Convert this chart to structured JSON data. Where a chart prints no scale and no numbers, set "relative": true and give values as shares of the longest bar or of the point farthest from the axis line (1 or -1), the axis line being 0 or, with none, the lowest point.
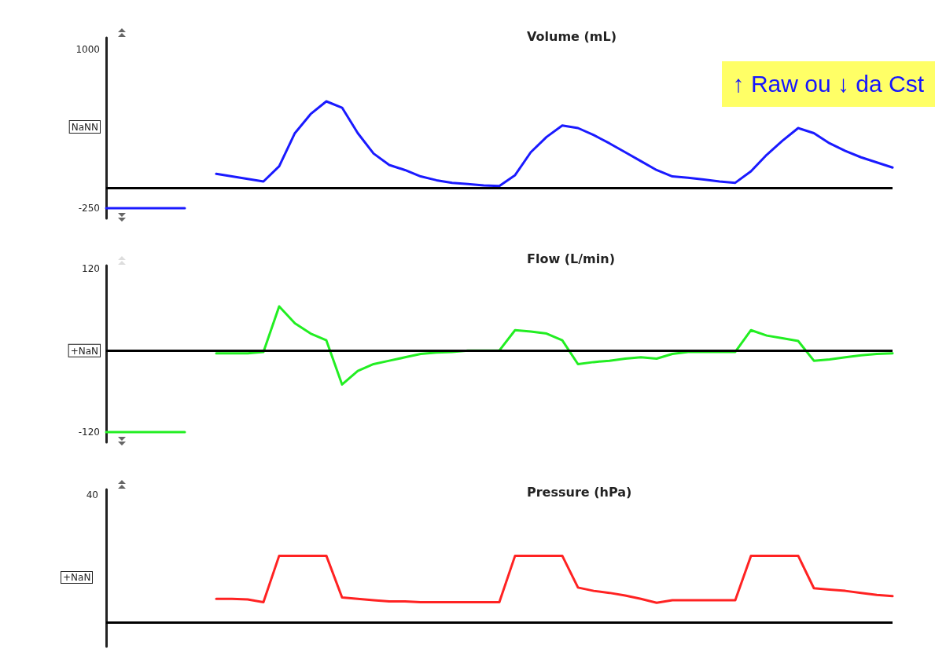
{
  "chart_data": [
    {
      "type": "line",
      "title": "Volume (mL)",
      "categories": [
        null,
        null,
        null,
        null,
        null,
        null,
        null,
        null,
        null,
        null,
        null,
        null,
        null,
        null,
        null,
        null,
        null,
        null,
        null,
        null,
        null,
        null,
        null,
        null,
        null,
        null,
        null,
        null,
        null,
        null,
        null,
        null,
        null,
        null,
        null,
        null,
        null,
        null,
        null,
        null,
        null,
        null,
        null,
        null,
        null,
        null,
        null,
        null,
        null,
        null,
        null
      ],
      "series": [
        {
          "color": "#1a1aff",
          "values": [
            -250,
            -250,
            -250,
            -250,
            -250,
            -250,
            null,
            null,
            null,
            null,
            null,
            null,
            null,
            null,
            null,
            null,
            null,
            null,
            null,
            null,
            null,
            null,
            null,
            null,
            null,
            null,
            null,
            null,
            null,
            null,
            null,
            null,
            null,
            null,
            null,
            null,
            null,
            null,
            null,
            null,
            null,
            null,
            null,
            null,
            null,
            null,
            null,
            null,
            null,
            null,
            null
          ]
        },
        {
          "color": "#1a1aff",
          "values": [
            null,
            null,
            null,
            null,
            null,
            null,
            null,
            20,
            0,
            -20,
            -40,
            80,
            340,
            490,
            590,
            540,
            340,
            180,
            90,
            50,
            0,
            -30,
            -50,
            -60,
            -70,
            -75,
            10,
            190,
            310,
            400,
            380,
            325,
            260,
            190,
            120,
            50,
            0,
            -10,
            -25,
            -40,
            -50,
            40,
            170,
            280,
            380,
            340,
            260,
            200,
            150,
            110,
            70
          ]
        }
      ],
      "ylim": [
        -330,
        1090
      ],
      "yticks": [
        1000,
        {
          "value": 390,
          "label": "NaNN"
        },
        -250
      ],
      "tick_labels": "y",
      "ref_lines": [
        {
          "axis": "y",
          "value": -90,
          "color": "#000000"
        }
      ],
      "annotations": [
        "↑ Raw ou ↓ da Cst"
      ]
    },
    {
      "type": "line",
      "title": "Flow (L/min)",
      "categories": [
        null,
        null,
        null,
        null,
        null,
        null,
        null,
        null,
        null,
        null,
        null,
        null,
        null,
        null,
        null,
        null,
        null,
        null,
        null,
        null,
        null,
        null,
        null,
        null,
        null,
        null,
        null,
        null,
        null,
        null,
        null,
        null,
        null,
        null,
        null,
        null,
        null,
        null,
        null,
        null,
        null,
        null,
        null,
        null,
        null,
        null,
        null,
        null,
        null,
        null,
        null
      ],
      "series": [
        {
          "color": "#22ee22",
          "values": [
            -120,
            -120,
            -120,
            -120,
            -120,
            -120,
            null,
            null,
            null,
            null,
            null,
            null,
            null,
            null,
            null,
            null,
            null,
            null,
            null,
            null,
            null,
            null,
            null,
            null,
            null,
            null,
            null,
            null,
            null,
            null,
            null,
            null,
            null,
            null,
            null,
            null,
            null,
            null,
            null,
            null,
            null,
            null,
            null,
            null,
            null,
            null,
            null,
            null,
            null,
            null,
            null
          ]
        },
        {
          "color": "#22ee22",
          "values": [
            null,
            null,
            null,
            null,
            null,
            null,
            null,
            -4,
            -4,
            -4,
            -2,
            65,
            40,
            25,
            15,
            -50,
            -30,
            -20,
            -15,
            -10,
            -5,
            -3,
            -2,
            0,
            0,
            0,
            30,
            28,
            25,
            15,
            -20,
            -17,
            -15,
            -12,
            -10,
            -12,
            -5,
            -2,
            -2,
            -2,
            -2,
            30,
            22,
            18,
            14,
            -15,
            -13,
            -10,
            -7,
            -5,
            -4
          ]
        }
      ],
      "ylim": [
        -135,
        125
      ],
      "yticks": [
        120,
        {
          "value": 0,
          "label": "+NaN"
        },
        -120
      ],
      "tick_labels": "y",
      "ref_lines": [
        {
          "axis": "y",
          "value": 0,
          "color": "#000000"
        }
      ]
    },
    {
      "type": "line",
      "title": "Pressure (hPa)",
      "relative": true,
      "categories": [
        null,
        null,
        null,
        null,
        null,
        null,
        null,
        null,
        null,
        null,
        null,
        null,
        null,
        null,
        null,
        null,
        null,
        null,
        null,
        null,
        null,
        null,
        null,
        null,
        null,
        null,
        null,
        null,
        null,
        null,
        null,
        null,
        null,
        null,
        null,
        null,
        null,
        null,
        null,
        null,
        null,
        null,
        null,
        null,
        null,
        null,
        null,
        null,
        null,
        null,
        null
      ],
      "series": [
        {
          "color": "#ff2222",
          "values": [
            null,
            null,
            null,
            null,
            null,
            null,
            null,
            0.35,
            0.35,
            0.34,
            0.3,
            1,
            1,
            1,
            1,
            0.37,
            0.35,
            0.33,
            0.31,
            0.31,
            0.3,
            0.3,
            0.3,
            0.3,
            0.3,
            0.3,
            1,
            1,
            1,
            1,
            0.52,
            0.47,
            0.44,
            0.4,
            0.35,
            0.29,
            0.33,
            0.33,
            0.33,
            0.33,
            0.33,
            1,
            1,
            1,
            1,
            0.51,
            0.49,
            0.47,
            0.44,
            0.41,
            0.39
          ]
        }
      ],
      "tick_labels": "y",
      "ref_lines": [
        {
          "axis": "y",
          "value": 0,
          "color": "#000000"
        }
      ],
      "annotations": [
        "40",
        "+NaN"
      ]
    }
  ]
}
